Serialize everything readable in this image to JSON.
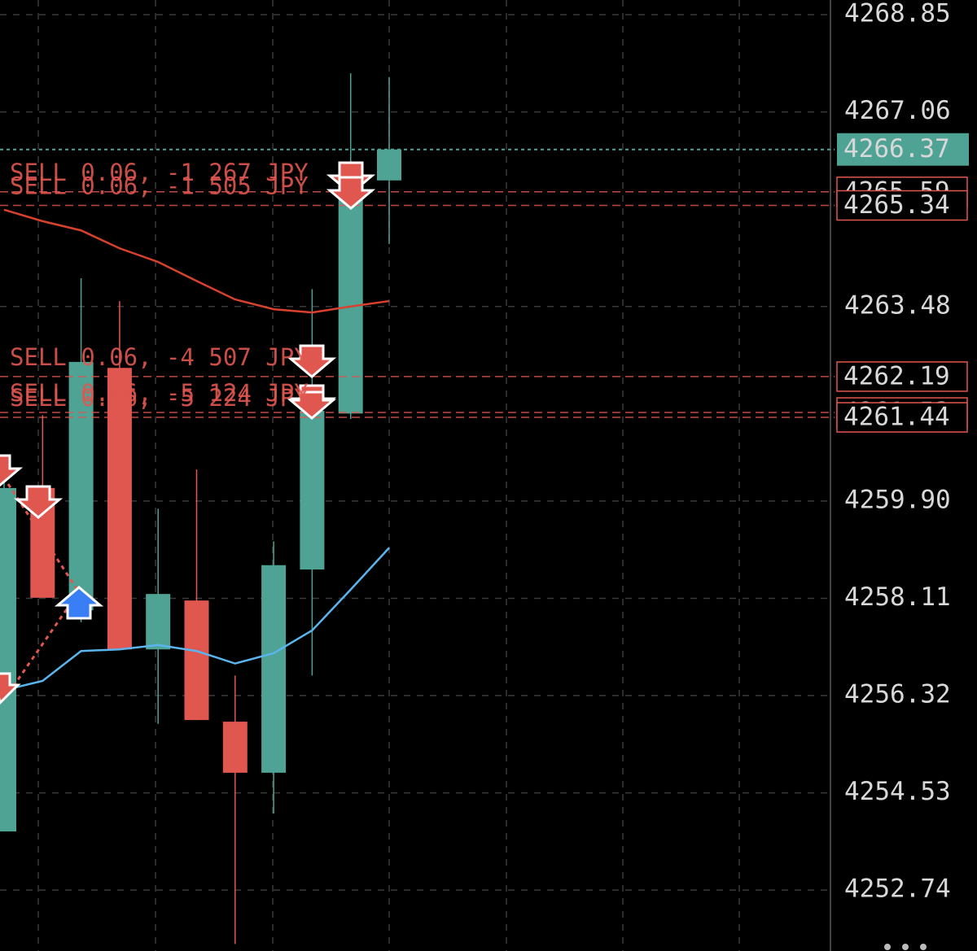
{
  "chart_data": {
    "type": "candlestick",
    "open": [
      4253.82,
      4260.14,
      4257.89,
      4262.35,
      4257.17,
      4258.07,
      4255.84,
      4254.9,
      4258.64,
      4261.51,
      4265.8
    ],
    "high": [
      4260.74,
      4261.48,
      4264.0,
      4263.58,
      4259.76,
      4260.48,
      4256.69,
      4259.16,
      4263.8,
      4267.77,
      4267.7
    ],
    "low": [
      4253.82,
      4258.12,
      4257.67,
      4257.17,
      4255.8,
      4255.87,
      4251.75,
      4254.15,
      4256.69,
      4261.41,
      4264.63
    ],
    "close": [
      4260.14,
      4258.12,
      4262.46,
      4257.17,
      4258.19,
      4255.87,
      4254.9,
      4258.72,
      4261.56,
      4265.53,
      4266.37
    ],
    "up_color": "#4fa395",
    "down_color": "#e0574f",
    "lines": [
      {
        "color": "#d9412f",
        "values": [
          4265.26,
          4265.05,
          4264.88,
          4264.55,
          4264.3,
          4263.95,
          4263.61,
          4263.43,
          4263.37,
          4263.48,
          4263.58
        ]
      },
      {
        "color": "#5ab4ee",
        "values": [
          4256.42,
          4256.59,
          4257.14,
          4257.17,
          4257.25,
          4257.14,
          4256.91,
          4257.1,
          4257.52,
          4258.27,
          4259.04
        ]
      }
    ],
    "orders": [
      {
        "label": "SELL 0.06, -1 267 JPY",
        "price": 4265.59
      },
      {
        "label": "SELL 0.06, -1 505 JPY",
        "price": 4265.34
      },
      {
        "label": "SELL 0.06, -4 507 JPY",
        "price": 4262.19
      },
      {
        "label": "SELL 0.06, -5 124 JPY",
        "price": 4261.53
      },
      {
        "label": "SELL 0.06, -5 224 JPY",
        "price": 4261.44
      }
    ],
    "order_color": "#e0574f",
    "current_price": 4266.37,
    "ylim": [
      4251.62,
      4269.12
    ],
    "yticks": [
      4268.85,
      4267.06,
      4263.48,
      {
        "value": 4259.9,
        "label": "4259.90"
      },
      4258.11,
      4256.32,
      4254.53,
      4252.74
    ],
    "grid": true
  }
}
